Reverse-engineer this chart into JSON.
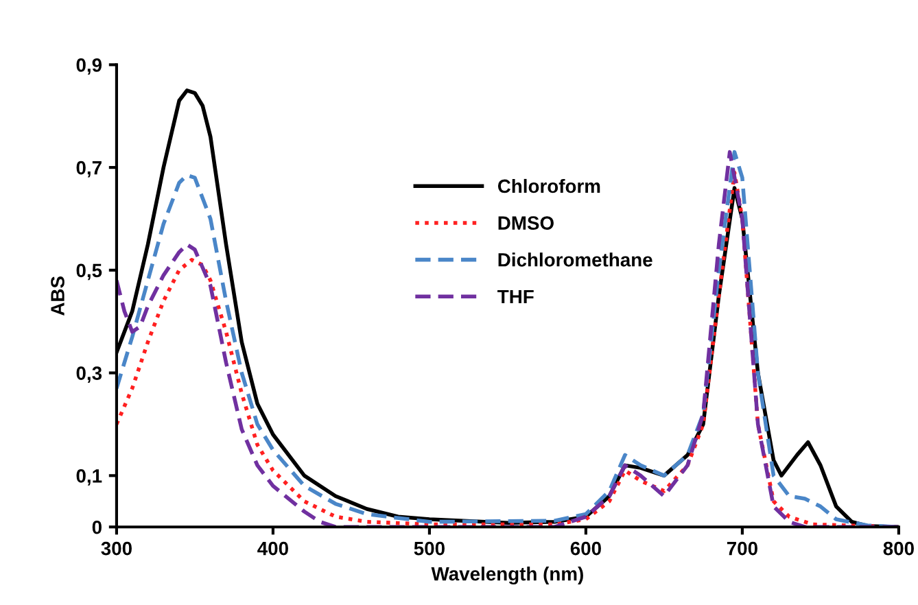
{
  "chart_data": {
    "type": "line",
    "xlabel": "Wavelength (nm)",
    "ylabel": "ABS",
    "xlim": [
      300,
      800
    ],
    "xticks": [
      300,
      400,
      500,
      600,
      700,
      800
    ],
    "ylim": [
      0,
      0.9
    ],
    "yticks": [
      0,
      {
        "value": 0.1,
        "label": "0,1"
      },
      {
        "value": 0.3,
        "label": "0,3"
      },
      {
        "value": 0.5,
        "label": "0,5"
      },
      {
        "value": 0.7,
        "label": "0,7"
      },
      {
        "value": 0.9,
        "label": "0,9"
      }
    ],
    "grid": false,
    "legend": "top",
    "marker": "none",
    "series": [
      {
        "name": "Chloroform",
        "color": "#000000",
        "line_style": "solid",
        "x": [
          300,
          310,
          320,
          330,
          340,
          345,
          350,
          355,
          360,
          370,
          380,
          390,
          400,
          420,
          440,
          460,
          480,
          500,
          550,
          580,
          600,
          615,
          625,
          635,
          650,
          665,
          675,
          685,
          695,
          700,
          710,
          720,
          725,
          735,
          742,
          750,
          760,
          770,
          780,
          800
        ],
        "values": [
          0.34,
          0.42,
          0.55,
          0.7,
          0.83,
          0.85,
          0.845,
          0.82,
          0.76,
          0.55,
          0.36,
          0.24,
          0.18,
          0.1,
          0.06,
          0.035,
          0.02,
          0.015,
          0.008,
          0.01,
          0.02,
          0.06,
          0.12,
          0.115,
          0.1,
          0.14,
          0.2,
          0.45,
          0.66,
          0.6,
          0.3,
          0.13,
          0.1,
          0.14,
          0.165,
          0.12,
          0.04,
          0.01,
          0.002,
          0
        ]
      },
      {
        "name": "DMSO",
        "color": "#ff2020",
        "line_style": "dotted",
        "x": [
          300,
          310,
          320,
          330,
          340,
          348,
          355,
          360,
          370,
          380,
          390,
          400,
          420,
          440,
          460,
          500,
          580,
          600,
          615,
          625,
          635,
          650,
          665,
          675,
          685,
          695,
          700,
          710,
          720,
          730,
          745,
          800
        ],
        "values": [
          0.2,
          0.27,
          0.36,
          0.44,
          0.5,
          0.52,
          0.51,
          0.48,
          0.38,
          0.26,
          0.16,
          0.11,
          0.05,
          0.02,
          0.01,
          0.005,
          0.005,
          0.015,
          0.05,
          0.11,
          0.09,
          0.07,
          0.12,
          0.2,
          0.45,
          0.69,
          0.6,
          0.2,
          0.05,
          0.02,
          0.005,
          0
        ]
      },
      {
        "name": "Dichloromethane",
        "color": "#4a86c8",
        "line_style": "dashed",
        "x": [
          300,
          310,
          320,
          330,
          340,
          345,
          350,
          360,
          370,
          380,
          390,
          400,
          420,
          440,
          460,
          500,
          580,
          600,
          615,
          625,
          635,
          650,
          665,
          675,
          685,
          695,
          700,
          710,
          720,
          730,
          740,
          750,
          760,
          780,
          800
        ],
        "values": [
          0.27,
          0.37,
          0.48,
          0.59,
          0.67,
          0.685,
          0.68,
          0.6,
          0.44,
          0.3,
          0.2,
          0.15,
          0.08,
          0.045,
          0.025,
          0.01,
          0.012,
          0.025,
          0.07,
          0.14,
          0.12,
          0.1,
          0.14,
          0.22,
          0.5,
          0.73,
          0.68,
          0.3,
          0.1,
          0.06,
          0.055,
          0.04,
          0.015,
          0.003,
          0
        ]
      },
      {
        "name": "THF",
        "color": "#7030a0",
        "line_style": "dashed",
        "x": [
          300,
          305,
          310,
          315,
          320,
          330,
          340,
          345,
          350,
          360,
          370,
          380,
          390,
          400,
          420,
          430,
          440,
          460,
          580,
          600,
          615,
          625,
          635,
          650,
          665,
          675,
          685,
          692,
          700,
          710,
          720,
          730,
          740,
          800
        ],
        "values": [
          0.48,
          0.42,
          0.38,
          0.39,
          0.43,
          0.49,
          0.535,
          0.55,
          0.54,
          0.47,
          0.32,
          0.19,
          0.12,
          0.08,
          0.03,
          0.01,
          0,
          0,
          0,
          0.02,
          0.06,
          0.12,
          0.1,
          0.06,
          0.12,
          0.22,
          0.55,
          0.73,
          0.6,
          0.2,
          0.04,
          0.01,
          0,
          0
        ]
      }
    ]
  }
}
